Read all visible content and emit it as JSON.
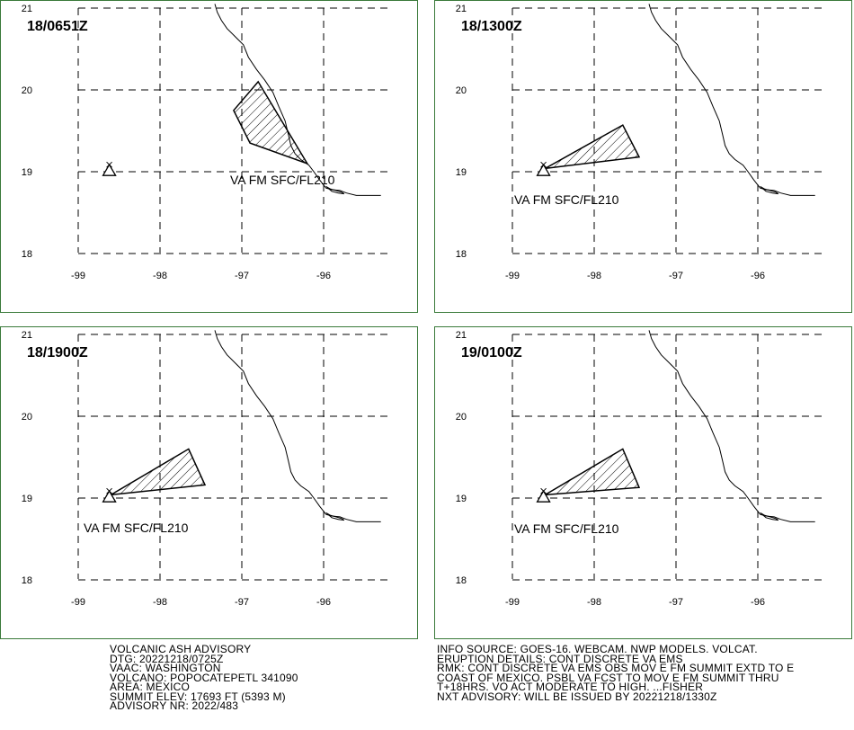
{
  "panels": [
    {
      "time_label": "18/0651Z",
      "va_label": "VA FM SFC/FL210",
      "polygon": [
        [
          -96.8,
          20.1
        ],
        [
          -97.1,
          19.75
        ],
        [
          -96.9,
          19.35
        ],
        [
          -96.2,
          19.1
        ]
      ]
    },
    {
      "time_label": "18/1300Z",
      "va_label": "VA FM SFC/FL210",
      "polygon": [
        [
          -98.6,
          19.04
        ],
        [
          -97.65,
          19.57
        ],
        [
          -97.45,
          19.18
        ]
      ]
    },
    {
      "time_label": "18/1900Z",
      "va_label": "VA FM SFC/FL210",
      "polygon": [
        [
          -98.6,
          19.04
        ],
        [
          -97.65,
          19.6
        ],
        [
          -97.45,
          19.16
        ]
      ]
    },
    {
      "time_label": "19/0100Z",
      "va_label": "VA FM SFC/FL210",
      "polygon": [
        [
          -98.6,
          19.04
        ],
        [
          -97.65,
          19.6
        ],
        [
          -97.45,
          19.13
        ]
      ]
    }
  ],
  "map": {
    "lon_ticks": [
      "-99",
      "-98",
      "-97",
      "-96"
    ],
    "lat_ticks": [
      "21",
      "20",
      "19",
      "18"
    ],
    "lon_values": [
      -99,
      -98,
      -97,
      -96
    ],
    "lat_values": [
      21,
      20,
      19,
      18
    ],
    "volcano": {
      "lon": -98.62,
      "lat": 19.02
    },
    "coastline": [
      [
        -97.33,
        21.05
      ],
      [
        -97.3,
        20.95
      ],
      [
        -97.25,
        20.85
      ],
      [
        -97.18,
        20.75
      ],
      [
        -97.05,
        20.62
      ],
      [
        -96.98,
        20.55
      ],
      [
        -96.92,
        20.4
      ],
      [
        -96.82,
        20.25
      ],
      [
        -96.72,
        20.12
      ],
      [
        -96.62,
        19.97
      ],
      [
        -96.55,
        19.8
      ],
      [
        -96.47,
        19.62
      ],
      [
        -96.43,
        19.45
      ],
      [
        -96.4,
        19.32
      ],
      [
        -96.35,
        19.22
      ],
      [
        -96.28,
        19.15
      ],
      [
        -96.18,
        19.08
      ],
      [
        -96.12,
        19.0
      ],
      [
        -96.05,
        18.9
      ],
      [
        -95.97,
        18.8
      ],
      [
        -95.9,
        18.78
      ],
      [
        -95.8,
        18.77
      ],
      [
        -95.72,
        18.74
      ],
      [
        -95.6,
        18.71
      ],
      [
        -95.45,
        18.71
      ],
      [
        -95.3,
        18.71
      ]
    ],
    "lagoon": [
      [
        -95.97,
        18.82
      ],
      [
        -95.92,
        18.79
      ],
      [
        -95.85,
        18.77
      ],
      [
        -95.78,
        18.75
      ],
      [
        -95.75,
        18.73
      ],
      [
        -95.82,
        18.74
      ],
      [
        -95.9,
        18.76
      ]
    ],
    "colors": {
      "border": "#3a7a3a",
      "line": "#000000",
      "background": "#ffffff"
    }
  },
  "info_left": {
    "lines": [
      "VOLCANIC ASH ADVISORY",
      "DTG: 20221218/0725Z",
      "VAAC: WASHINGTON",
      "VOLCANO: POPOCATEPETL 341090",
      "AREA: MEXICO",
      "SUMMIT ELEV: 17693 FT (5393 M)",
      "ADVISORY NR: 2022/483"
    ]
  },
  "info_right": {
    "lines": [
      "INFO SOURCE: GOES-16. WEBCAM. NWP MODELS. VOLCAT.",
      "ERUPTION DETAILS: CONT DISCRETE VA EMS",
      "RMK: CONT DISCRETE VA EMS OBS MOV E FM SUMMIT EXTD TO E",
      "COAST OF MEXICO. PSBL VA FCST TO MOV E FM SUMMIT THRU",
      "T+18HRS. VO ACT MODERATE TO HIGH. ...FISHER",
      "NXT ADVISORY: WILL BE ISSUED BY 20221218/1330Z"
    ]
  }
}
